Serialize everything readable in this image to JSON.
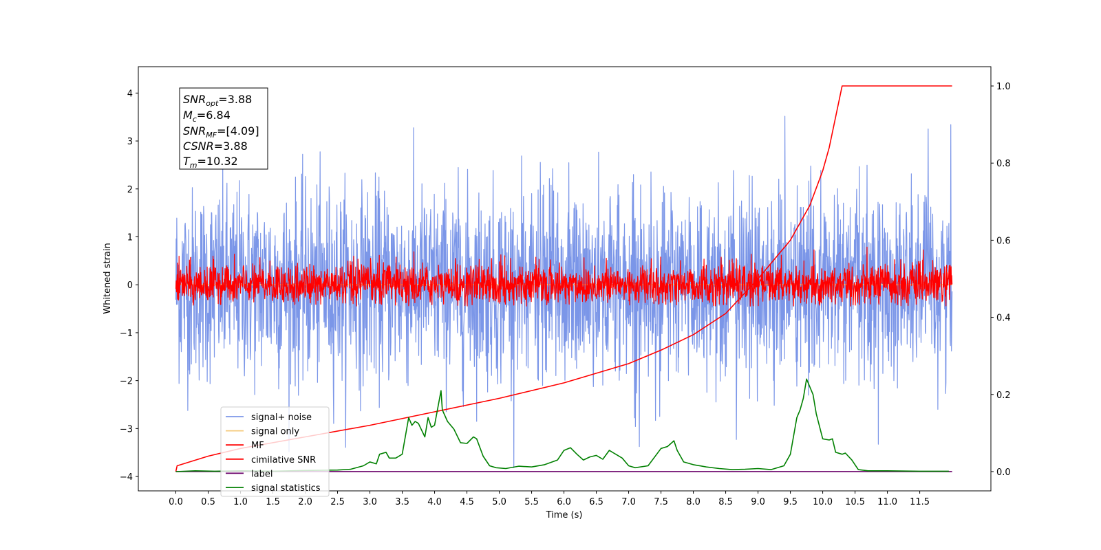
{
  "chart_data": {
    "type": "line",
    "xlabel": "Time (s)",
    "ylabel": "Whitened strain",
    "xlim": [
      -0.58,
      12.6
    ],
    "ylim": [
      -4.3,
      4.55
    ],
    "y2lim": [
      -0.05,
      1.05
    ],
    "x_ticks": [
      "0.0",
      "0.5",
      "1.0",
      "1.5",
      "2.0",
      "2.5",
      "3.0",
      "3.5",
      "4.0",
      "4.5",
      "5.0",
      "5.5",
      "6.0",
      "6.5",
      "7.0",
      "7.5",
      "8.0",
      "8.5",
      "9.0",
      "9.5",
      "10.0",
      "10.5",
      "11.0",
      "11.5"
    ],
    "y_ticks": [
      "−4",
      "−3",
      "−2",
      "−1",
      "0",
      "1",
      "2",
      "3",
      "4"
    ],
    "y2_ticks": [
      "0.0",
      "0.2",
      "0.4",
      "0.6",
      "0.8",
      "1.0"
    ],
    "grid": false,
    "legend_position": "lower-left",
    "annotation": {
      "snr_opt": "=3.88",
      "mc": "=6.84",
      "snr_mf": "=[4.09]",
      "csnr": "=3.88",
      "tm": "=10.32"
    },
    "series": [
      {
        "name": "signal+ noise",
        "color": "#7b96e8",
        "axis": "left",
        "kind": "noise",
        "amplitude_range": [
          -3.9,
          4.15
        ],
        "std": 1.0
      },
      {
        "name": "signal only",
        "color": "#f5c97a",
        "axis": "left",
        "kind": "flat",
        "y": 0.0
      },
      {
        "name": "MF",
        "color": "#ff0000",
        "axis": "left",
        "kind": "noise",
        "amplitude_range": [
          -0.45,
          1.0
        ],
        "std": 0.22
      },
      {
        "name": "cimilative SNR",
        "color": "#ff0000",
        "axis": "right",
        "kind": "curve",
        "x": [
          0.0,
          0.02,
          0.5,
          1.0,
          2.0,
          3.0,
          4.0,
          5.0,
          6.0,
          7.0,
          7.5,
          8.0,
          8.5,
          9.0,
          9.5,
          9.8,
          10.0,
          10.1,
          10.2,
          10.3,
          10.32,
          12.0
        ],
        "y": [
          0.0,
          0.015,
          0.04,
          0.06,
          0.09,
          0.12,
          0.155,
          0.19,
          0.23,
          0.28,
          0.315,
          0.355,
          0.41,
          0.5,
          0.6,
          0.69,
          0.78,
          0.84,
          0.92,
          1.0,
          1.0,
          1.0
        ]
      },
      {
        "name": "label",
        "color": "#6a006a",
        "axis": "right",
        "kind": "flat",
        "y": 0.0
      },
      {
        "name": "signal statistics",
        "color": "#008000",
        "axis": "right",
        "kind": "curve",
        "x": [
          0.0,
          0.3,
          0.6,
          1.0,
          1.5,
          2.0,
          2.5,
          2.7,
          2.9,
          3.0,
          3.1,
          3.15,
          3.25,
          3.3,
          3.4,
          3.5,
          3.6,
          3.65,
          3.7,
          3.75,
          3.85,
          3.9,
          3.95,
          4.0,
          4.1,
          4.12,
          4.2,
          4.3,
          4.4,
          4.5,
          4.6,
          4.65,
          4.75,
          4.85,
          4.95,
          5.1,
          5.3,
          5.5,
          5.7,
          5.9,
          6.0,
          6.1,
          6.2,
          6.3,
          6.4,
          6.5,
          6.6,
          6.7,
          6.8,
          6.9,
          7.0,
          7.1,
          7.3,
          7.5,
          7.6,
          7.7,
          7.75,
          7.85,
          8.0,
          8.2,
          8.4,
          8.6,
          8.8,
          9.0,
          9.2,
          9.4,
          9.5,
          9.6,
          9.65,
          9.7,
          9.75,
          9.8,
          9.85,
          9.9,
          10.0,
          10.1,
          10.15,
          10.2,
          10.3,
          10.35,
          10.45,
          10.55,
          10.7,
          11.0,
          11.5,
          11.95
        ],
        "y": [
          0.0,
          0.002,
          0.001,
          0.002,
          0.001,
          0.003,
          0.004,
          0.006,
          0.015,
          0.025,
          0.02,
          0.045,
          0.05,
          0.035,
          0.035,
          0.045,
          0.14,
          0.12,
          0.13,
          0.125,
          0.09,
          0.14,
          0.115,
          0.12,
          0.21,
          0.16,
          0.13,
          0.11,
          0.075,
          0.073,
          0.09,
          0.085,
          0.04,
          0.015,
          0.01,
          0.008,
          0.014,
          0.012,
          0.018,
          0.03,
          0.055,
          0.062,
          0.045,
          0.03,
          0.038,
          0.042,
          0.032,
          0.055,
          0.045,
          0.035,
          0.015,
          0.01,
          0.015,
          0.06,
          0.065,
          0.08,
          0.055,
          0.025,
          0.018,
          0.012,
          0.008,
          0.005,
          0.006,
          0.008,
          0.005,
          0.015,
          0.045,
          0.14,
          0.16,
          0.19,
          0.24,
          0.22,
          0.2,
          0.15,
          0.085,
          0.082,
          0.085,
          0.05,
          0.045,
          0.048,
          0.03,
          0.005,
          0.002,
          0.002,
          0.001,
          0.001
        ]
      }
    ]
  }
}
